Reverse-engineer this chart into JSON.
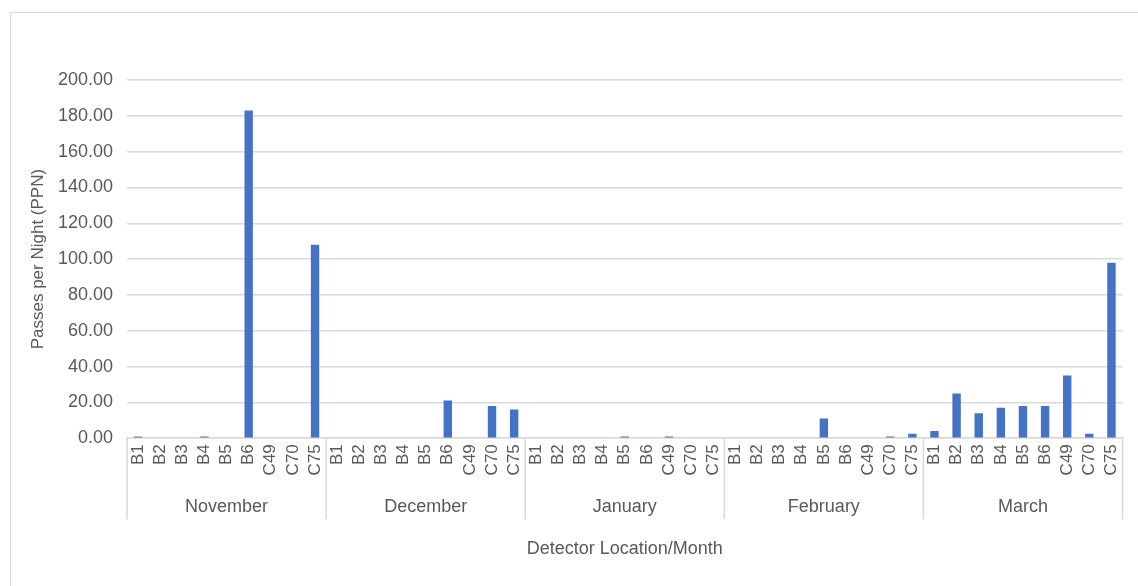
{
  "chart_data": {
    "type": "bar",
    "xlabel": "Detector Location/Month",
    "ylabel": "Passes per Night (PPN)",
    "categories": [
      "B1",
      "B2",
      "B3",
      "B4",
      "B5",
      "B6",
      "C49",
      "C70",
      "C75",
      "B1",
      "B2",
      "B3",
      "B4",
      "B5",
      "B6",
      "C49",
      "C70",
      "C75",
      "B1",
      "B2",
      "B3",
      "B4",
      "B5",
      "B6",
      "C49",
      "C70",
      "C75",
      "B1",
      "B2",
      "B3",
      "B4",
      "B5",
      "B6",
      "C49",
      "C70",
      "C75",
      "B1",
      "B2",
      "B3",
      "B4",
      "B5",
      "B6",
      "C49",
      "C70",
      "C75"
    ],
    "values": [
      1,
      0,
      0,
      1,
      0,
      183,
      0,
      0,
      108,
      0,
      0,
      0,
      0,
      0,
      21,
      0,
      18,
      16,
      0,
      0,
      0,
      0,
      1,
      0,
      1,
      0,
      0,
      0,
      0,
      0,
      0,
      11,
      0,
      0,
      1,
      2.5,
      4,
      25,
      14,
      17,
      18,
      18,
      35,
      2.5,
      98
    ],
    "color": "#4472c4",
    "ylim": [
      0,
      200
    ],
    "yticks": [
      {
        "value": 0,
        "label": "0.00"
      },
      {
        "value": 20,
        "label": "20.00"
      },
      {
        "value": 40,
        "label": "40.00"
      },
      {
        "value": 60,
        "label": "60.00"
      },
      {
        "value": 80,
        "label": "80.00"
      },
      {
        "value": 100,
        "label": "100.00"
      },
      {
        "value": 120,
        "label": "120.00"
      },
      {
        "value": 140,
        "label": "140.00"
      },
      {
        "value": 160,
        "label": "160.00"
      },
      {
        "value": 180,
        "label": "180.00"
      },
      {
        "value": 200,
        "label": "200.00"
      }
    ],
    "grid": "y",
    "annotations": [
      "November",
      "December",
      "January",
      "February",
      "March"
    ]
  }
}
